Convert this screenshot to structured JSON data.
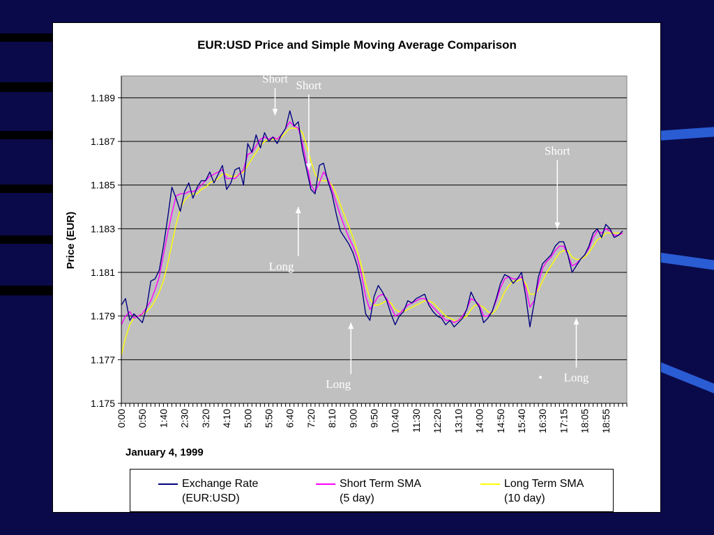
{
  "chart_data": {
    "type": "line",
    "title": "EUR:USD Price and Simple Moving Average Comparison",
    "xlabel": "January 4, 1999",
    "ylabel": "Price (EUR)",
    "ylim": [
      1.175,
      1.19
    ],
    "yticks": [
      "1.189",
      "1.187",
      "1.185",
      "1.183",
      "1.181",
      "1.179",
      "1.177",
      "1.175"
    ],
    "xticks": [
      "0:00",
      "0:50",
      "1:40",
      "2:30",
      "3:20",
      "4:10",
      "5:00",
      "5:50",
      "6:40",
      "7:20",
      "8:10",
      "9:00",
      "9:50",
      "10:40",
      "11:30",
      "12:20",
      "13:10",
      "14:00",
      "14:50",
      "15:40",
      "16:30",
      "17:15",
      "18:05",
      "18:55"
    ],
    "grid": true,
    "plot_background": "#c0c0c0",
    "series": [
      {
        "name": "Exchange Rate (EUR:USD)",
        "name_line1": "Exchange Rate",
        "name_line2": "(EUR:USD)",
        "color": "#000080",
        "x": [
          0.0,
          0.2,
          0.4,
          0.6,
          0.8,
          1.0,
          1.2,
          1.4,
          1.6,
          1.8,
          2.0,
          2.2,
          2.4,
          2.6,
          2.8,
          3.0,
          3.2,
          3.4,
          3.6,
          3.8,
          4.0,
          4.2,
          4.4,
          4.6,
          4.8,
          5.0,
          5.2,
          5.4,
          5.6,
          5.8,
          6.0,
          6.2,
          6.4,
          6.6,
          6.8,
          7.0,
          7.2,
          7.4,
          7.6,
          7.8,
          8.0,
          8.2,
          8.4,
          8.6,
          8.8,
          9.0,
          9.2,
          9.4,
          9.6,
          9.8,
          10.0,
          10.2,
          10.4,
          10.6,
          10.8,
          11.0,
          11.2,
          11.4,
          11.6,
          11.8,
          12.0,
          12.2,
          12.4,
          12.6,
          12.8,
          13.0,
          13.2,
          13.4,
          13.6,
          13.8,
          14.0,
          14.2,
          14.4,
          14.6,
          14.8,
          15.0,
          15.2,
          15.4,
          15.6,
          15.8,
          16.0,
          16.2,
          16.4,
          16.6,
          16.8,
          17.0,
          17.2,
          17.4,
          17.6,
          17.8,
          18.0,
          18.2,
          18.4,
          18.6,
          18.8,
          19.0,
          19.2,
          19.4,
          19.6,
          19.8,
          20.0,
          20.2,
          20.4,
          20.6,
          20.8,
          21.0,
          21.2,
          21.4,
          21.6,
          21.8,
          22.0,
          22.2,
          22.4,
          22.6,
          22.8,
          23.0,
          23.2,
          23.4,
          23.6,
          23.8
        ],
        "values": [
          1.1795,
          1.1798,
          1.1788,
          1.1791,
          1.1789,
          1.1787,
          1.1794,
          1.1806,
          1.1807,
          1.1811,
          1.1822,
          1.1835,
          1.1849,
          1.1844,
          1.1838,
          1.1847,
          1.1851,
          1.1844,
          1.1849,
          1.1852,
          1.1852,
          1.1856,
          1.1851,
          1.1855,
          1.1859,
          1.1848,
          1.1851,
          1.1857,
          1.1858,
          1.185,
          1.1869,
          1.1865,
          1.1873,
          1.1867,
          1.1874,
          1.187,
          1.1872,
          1.1869,
          1.1873,
          1.1876,
          1.1884,
          1.1877,
          1.1879,
          1.1866,
          1.1857,
          1.1848,
          1.1846,
          1.1859,
          1.186,
          1.1852,
          1.1846,
          1.1837,
          1.1829,
          1.1826,
          1.1823,
          1.1819,
          1.1813,
          1.1804,
          1.1791,
          1.1788,
          1.1799,
          1.1804,
          1.1801,
          1.1797,
          1.1791,
          1.1786,
          1.179,
          1.1792,
          1.1797,
          1.1796,
          1.1798,
          1.1799,
          1.18,
          1.1795,
          1.1792,
          1.179,
          1.1789,
          1.1786,
          1.1788,
          1.1785,
          1.1787,
          1.1789,
          1.1793,
          1.1801,
          1.1797,
          1.1794,
          1.1787,
          1.1789,
          1.1792,
          1.1798,
          1.1805,
          1.1809,
          1.1808,
          1.1805,
          1.1807,
          1.181,
          1.1799,
          1.1785,
          1.1796,
          1.1808,
          1.1814,
          1.1816,
          1.1818,
          1.1822,
          1.1824,
          1.1824,
          1.1818,
          1.181,
          1.1813,
          1.1816,
          1.1818,
          1.1822,
          1.1828,
          1.183,
          1.1826,
          1.1832,
          1.183,
          1.1826,
          1.1827,
          1.1829
        ]
      },
      {
        "name": "Short Term SMA (5 day)",
        "name_line1": "Short Term SMA",
        "name_line2": "(5 day)",
        "color": "#ff00ff",
        "x": [
          0.0,
          0.2,
          0.4,
          0.6,
          0.8,
          1.0,
          1.2,
          1.4,
          1.6,
          1.8,
          2.0,
          2.2,
          2.4,
          2.6,
          2.8,
          3.0,
          3.2,
          3.4,
          3.6,
          3.8,
          4.0,
          4.2,
          4.4,
          4.6,
          4.8,
          5.0,
          5.2,
          5.4,
          5.6,
          5.8,
          6.0,
          6.2,
          6.4,
          6.6,
          6.8,
          7.0,
          7.2,
          7.4,
          7.6,
          7.8,
          8.0,
          8.2,
          8.4,
          8.6,
          8.8,
          9.0,
          9.2,
          9.4,
          9.6,
          9.8,
          10.0,
          10.2,
          10.4,
          10.6,
          10.8,
          11.0,
          11.2,
          11.4,
          11.6,
          11.8,
          12.0,
          12.2,
          12.4,
          12.6,
          12.8,
          13.0,
          13.2,
          13.4,
          13.6,
          13.8,
          14.0,
          14.2,
          14.4,
          14.6,
          14.8,
          15.0,
          15.2,
          15.4,
          15.6,
          15.8,
          16.0,
          16.2,
          16.4,
          16.6,
          16.8,
          17.0,
          17.2,
          17.4,
          17.6,
          17.8,
          18.0,
          18.2,
          18.4,
          18.6,
          18.8,
          19.0,
          19.2,
          19.4,
          19.6,
          19.8,
          20.0,
          20.2,
          20.4,
          20.6,
          20.8,
          21.0,
          21.2,
          21.4,
          21.6,
          21.8,
          22.0,
          22.2,
          22.4,
          22.6,
          22.8,
          23.0,
          23.2,
          23.4,
          23.6,
          23.8
        ],
        "values": [
          1.1786,
          1.179,
          1.1792,
          1.1789,
          1.179,
          1.1791,
          1.1794,
          1.1797,
          1.1802,
          1.1808,
          1.1818,
          1.1828,
          1.1837,
          1.1845,
          1.1846,
          1.1846,
          1.1847,
          1.1847,
          1.1848,
          1.185,
          1.1852,
          1.1854,
          1.1855,
          1.1856,
          1.1857,
          1.1853,
          1.1853,
          1.1853,
          1.1855,
          1.1857,
          1.1864,
          1.1865,
          1.1868,
          1.1871,
          1.1872,
          1.1871,
          1.1872,
          1.1871,
          1.1873,
          1.1876,
          1.1879,
          1.1877,
          1.1876,
          1.1869,
          1.186,
          1.185,
          1.1847,
          1.1851,
          1.1856,
          1.1853,
          1.1848,
          1.1842,
          1.1836,
          1.1831,
          1.1826,
          1.1822,
          1.1817,
          1.1809,
          1.1799,
          1.1793,
          1.1796,
          1.1799,
          1.18,
          1.1798,
          1.1794,
          1.179,
          1.1791,
          1.1793,
          1.1795,
          1.1796,
          1.1797,
          1.1798,
          1.1798,
          1.1796,
          1.1794,
          1.1792,
          1.179,
          1.1788,
          1.1788,
          1.1787,
          1.1788,
          1.179,
          1.1793,
          1.1798,
          1.1797,
          1.1795,
          1.179,
          1.179,
          1.1792,
          1.1797,
          1.1803,
          1.1807,
          1.1808,
          1.1807,
          1.1807,
          1.1808,
          1.1803,
          1.1794,
          1.1797,
          1.1805,
          1.1812,
          1.1815,
          1.1817,
          1.182,
          1.1822,
          1.1822,
          1.1818,
          1.1813,
          1.1814,
          1.1816,
          1.1818,
          1.1821,
          1.1826,
          1.1829,
          1.1828,
          1.183,
          1.1829,
          1.1827,
          1.1827,
          1.1828
        ]
      },
      {
        "name": "Long Term SMA (10 day)",
        "name_line1": "Long Term SMA",
        "name_line2": "(10 day)",
        "color": "#ffff00",
        "x": [
          0.0,
          0.2,
          0.4,
          0.6,
          0.8,
          1.0,
          1.2,
          1.4,
          1.6,
          1.8,
          2.0,
          2.2,
          2.4,
          2.6,
          2.8,
          3.0,
          3.2,
          3.4,
          3.6,
          3.8,
          4.0,
          4.2,
          4.4,
          4.6,
          4.8,
          5.0,
          5.2,
          5.4,
          5.6,
          5.8,
          6.0,
          6.2,
          6.4,
          6.6,
          6.8,
          7.0,
          7.2,
          7.4,
          7.6,
          7.8,
          8.0,
          8.2,
          8.4,
          8.6,
          8.8,
          9.0,
          9.2,
          9.4,
          9.6,
          9.8,
          10.0,
          10.2,
          10.4,
          10.6,
          10.8,
          11.0,
          11.2,
          11.4,
          11.6,
          11.8,
          12.0,
          12.2,
          12.4,
          12.6,
          12.8,
          13.0,
          13.2,
          13.4,
          13.6,
          13.8,
          14.0,
          14.2,
          14.4,
          14.6,
          14.8,
          15.0,
          15.2,
          15.4,
          15.6,
          15.8,
          16.0,
          16.2,
          16.4,
          16.6,
          16.8,
          17.0,
          17.2,
          17.4,
          17.6,
          17.8,
          18.0,
          18.2,
          18.4,
          18.6,
          18.8,
          19.0,
          19.2,
          19.4,
          19.6,
          19.8,
          20.0,
          20.2,
          20.4,
          20.6,
          20.8,
          21.0,
          21.2,
          21.4,
          21.6,
          21.8,
          22.0,
          22.2,
          22.4,
          22.6,
          22.8,
          23.0,
          23.2,
          23.4,
          23.6,
          23.8
        ],
        "values": [
          1.1772,
          1.178,
          1.1786,
          1.1789,
          1.179,
          1.1791,
          1.1792,
          1.1794,
          1.1797,
          1.1801,
          1.1806,
          1.1814,
          1.1823,
          1.1832,
          1.1839,
          1.1843,
          1.1845,
          1.1846,
          1.1846,
          1.1848,
          1.1849,
          1.1851,
          1.1852,
          1.1853,
          1.1855,
          1.1855,
          1.1854,
          1.1854,
          1.1855,
          1.1856,
          1.1859,
          1.1862,
          1.1865,
          1.1868,
          1.187,
          1.1871,
          1.1871,
          1.1871,
          1.1872,
          1.1874,
          1.1876,
          1.1876,
          1.1876,
          1.1874,
          1.1868,
          1.1861,
          1.1855,
          1.1852,
          1.1852,
          1.1852,
          1.185,
          1.1846,
          1.1841,
          1.1836,
          1.1831,
          1.1826,
          1.182,
          1.1813,
          1.1805,
          1.1798,
          1.1795,
          1.1795,
          1.1796,
          1.1797,
          1.1796,
          1.1793,
          1.1792,
          1.1792,
          1.1793,
          1.1794,
          1.1795,
          1.1796,
          1.1797,
          1.1797,
          1.1796,
          1.1794,
          1.1792,
          1.179,
          1.1789,
          1.1788,
          1.1788,
          1.1789,
          1.179,
          1.1793,
          1.1795,
          1.1795,
          1.1794,
          1.1792,
          1.1791,
          1.1793,
          1.1797,
          1.1801,
          1.1804,
          1.1806,
          1.1806,
          1.1807,
          1.1805,
          1.18,
          1.18,
          1.1802,
          1.1806,
          1.181,
          1.1813,
          1.1816,
          1.1819,
          1.182,
          1.182,
          1.1817,
          1.1816,
          1.1816,
          1.1817,
          1.1819,
          1.1822,
          1.1825,
          1.1826,
          1.1828,
          1.1828,
          1.1828,
          1.1828,
          1.1828
        ]
      }
    ],
    "annotations": [
      {
        "text": "Short",
        "x": 7.3,
        "y": 1.1897,
        "arrow_to": [
          7.3,
          1.1882
        ],
        "direction": "down"
      },
      {
        "text": "Short",
        "x": 8.9,
        "y": 1.1894,
        "arrow_to": [
          8.9,
          1.1857
        ],
        "direction": "down"
      },
      {
        "text": "Long",
        "x": 7.6,
        "y": 1.1811,
        "arrow_to": [
          8.4,
          1.184
        ],
        "direction": "up"
      },
      {
        "text": "Long",
        "x": 10.3,
        "y": 1.1757,
        "arrow_to": [
          10.9,
          1.1787
        ],
        "direction": "up"
      },
      {
        "text": "Short",
        "x": 20.7,
        "y": 1.1864,
        "arrow_to": [
          20.7,
          1.183
        ],
        "direction": "down"
      },
      {
        "text": "Long",
        "x": 21.6,
        "y": 1.176,
        "arrow_to": [
          21.6,
          1.1789
        ],
        "direction": "up"
      },
      {
        "text": "•",
        "x": 19.9,
        "y": 1.176
      }
    ]
  }
}
